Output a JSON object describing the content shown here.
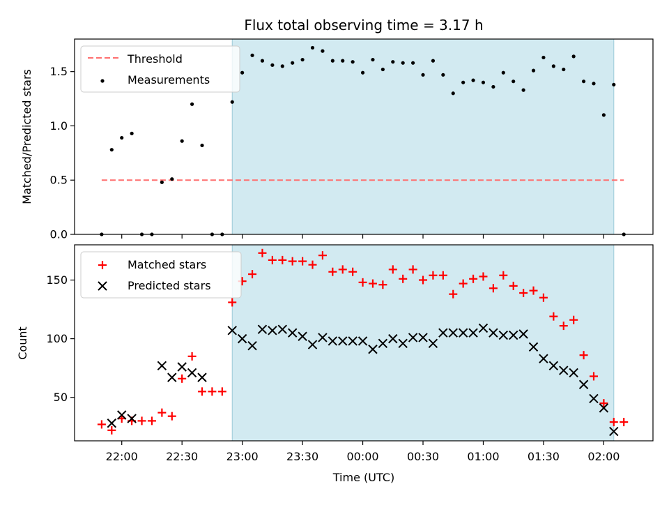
{
  "chart_data": [
    {
      "type": "scatter",
      "panel": "top",
      "title": "Flux total observing time = 3.17 h",
      "xlabel": "",
      "ylabel": "Matched/Predicted stars",
      "ylim": [
        0,
        1.8
      ],
      "yticks": [
        0.0,
        0.5,
        1.0,
        1.5
      ],
      "ytick_labels": [
        "0.0",
        "0.5",
        "1.0",
        "1.5"
      ],
      "x_unit": "minutes from 22:00 UTC",
      "xlim": [
        -23.5,
        264.5
      ],
      "xticks": [
        0,
        30,
        60,
        90,
        120,
        150,
        180,
        210,
        240
      ],
      "shaded_interval": [
        "22:55",
        "02:05"
      ],
      "shade_color": "#add8e6",
      "legend": {
        "position": "upper left",
        "entries": [
          "Threshold",
          "Measurements"
        ]
      },
      "threshold": {
        "name": "Threshold",
        "value": 0.5,
        "x_range": [
          "21:50",
          "02:10"
        ],
        "color": "#ff6f6f",
        "style": "dashed"
      },
      "series": [
        {
          "name": "Measurements",
          "marker": "dot",
          "color": "#000000",
          "x": [
            "21:50",
            "21:55",
            "22:00",
            "22:05",
            "22:10",
            "22:15",
            "22:20",
            "22:25",
            "22:30",
            "22:35",
            "22:40",
            "22:45",
            "22:50",
            "22:55",
            "23:00",
            "23:05",
            "23:10",
            "23:15",
            "23:20",
            "23:25",
            "23:30",
            "23:35",
            "23:40",
            "23:45",
            "23:50",
            "23:55",
            "00:00",
            "00:05",
            "00:10",
            "00:15",
            "00:20",
            "00:25",
            "00:30",
            "00:35",
            "00:40",
            "00:45",
            "00:50",
            "00:55",
            "01:00",
            "01:05",
            "01:10",
            "01:15",
            "01:20",
            "01:25",
            "01:30",
            "01:35",
            "01:40",
            "01:45",
            "01:50",
            "01:55",
            "02:00",
            "02:05",
            "02:10"
          ],
          "y": [
            0.0,
            0.78,
            0.89,
            0.93,
            0.0,
            0.0,
            0.48,
            0.51,
            0.86,
            1.2,
            0.82,
            0.0,
            0.0,
            1.22,
            1.49,
            1.65,
            1.6,
            1.56,
            1.55,
            1.58,
            1.61,
            1.72,
            1.69,
            1.6,
            1.6,
            1.59,
            1.49,
            1.61,
            1.52,
            1.59,
            1.58,
            1.58,
            1.47,
            1.6,
            1.47,
            1.3,
            1.4,
            1.42,
            1.4,
            1.36,
            1.49,
            1.41,
            1.33,
            1.51,
            1.63,
            1.55,
            1.52,
            1.64,
            1.41,
            1.39,
            1.1,
            1.38,
            0.0
          ]
        }
      ]
    },
    {
      "type": "scatter",
      "panel": "bottom",
      "title": "",
      "xlabel": "Time (UTC)",
      "ylabel": "Count",
      "ylim": [
        13,
        180
      ],
      "yticks": [
        50,
        100,
        150
      ],
      "ytick_labels": [
        "50",
        "100",
        "150"
      ],
      "x_unit": "minutes from 22:00 UTC",
      "xlim": [
        -23.5,
        264.5
      ],
      "xticks": [
        0,
        30,
        60,
        90,
        120,
        150,
        180,
        210,
        240
      ],
      "xtick_labels": [
        "22:00",
        "22:30",
        "23:00",
        "23:30",
        "00:00",
        "00:30",
        "01:00",
        "01:30",
        "02:00"
      ],
      "shaded_interval": [
        "22:55",
        "02:05"
      ],
      "shade_color": "#add8e6",
      "legend": {
        "position": "upper left",
        "entries": [
          "Matched stars",
          "Predicted stars"
        ]
      },
      "series": [
        {
          "name": "Matched stars",
          "marker": "plus",
          "color": "#ff0000",
          "x": [
            "21:50",
            "21:55",
            "22:00",
            "22:05",
            "22:10",
            "22:15",
            "22:20",
            "22:25",
            "22:30",
            "22:35",
            "22:40",
            "22:45",
            "22:50",
            "22:55",
            "23:00",
            "23:05",
            "23:10",
            "23:15",
            "23:20",
            "23:25",
            "23:30",
            "23:35",
            "23:40",
            "23:45",
            "23:50",
            "23:55",
            "00:00",
            "00:05",
            "00:10",
            "00:15",
            "00:20",
            "00:25",
            "00:30",
            "00:35",
            "00:40",
            "00:45",
            "00:50",
            "00:55",
            "01:00",
            "01:05",
            "01:10",
            "01:15",
            "01:20",
            "01:25",
            "01:30",
            "01:35",
            "01:40",
            "01:45",
            "01:50",
            "01:55",
            "02:00",
            "02:05",
            "02:10"
          ],
          "y": [
            27,
            22,
            32,
            30,
            30,
            30,
            37,
            34,
            66,
            85,
            55,
            55,
            55,
            131,
            149,
            155,
            173,
            167,
            167,
            166,
            166,
            163,
            171,
            157,
            159,
            157,
            148,
            147,
            146,
            159,
            151,
            159,
            150,
            154,
            154,
            138,
            147,
            151,
            153,
            143,
            154,
            145,
            139,
            141,
            135,
            119,
            111,
            116,
            86,
            68,
            45,
            29,
            29
          ]
        },
        {
          "name": "Predicted stars",
          "marker": "x",
          "color": "#000000",
          "x": [
            "21:55",
            "22:00",
            "22:05",
            "22:20",
            "22:25",
            "22:30",
            "22:35",
            "22:40",
            "22:55",
            "23:00",
            "23:05",
            "23:10",
            "23:15",
            "23:20",
            "23:25",
            "23:30",
            "23:35",
            "23:40",
            "23:45",
            "23:50",
            "23:55",
            "00:00",
            "00:05",
            "00:10",
            "00:15",
            "00:20",
            "00:25",
            "00:30",
            "00:35",
            "00:40",
            "00:45",
            "00:50",
            "00:55",
            "01:00",
            "01:05",
            "01:10",
            "01:15",
            "01:20",
            "01:25",
            "01:30",
            "01:35",
            "01:40",
            "01:45",
            "01:50",
            "01:55",
            "02:00",
            "02:05"
          ],
          "y": [
            28,
            35,
            32,
            77,
            67,
            76,
            71,
            67,
            107,
            100,
            94,
            108,
            107,
            108,
            105,
            102,
            95,
            101,
            98,
            98,
            98,
            98,
            91,
            96,
            100,
            96,
            101,
            101,
            96,
            105,
            105,
            105,
            105,
            109,
            105,
            103,
            103,
            104,
            93,
            83,
            77,
            73,
            71,
            61,
            49,
            41,
            21
          ]
        }
      ]
    }
  ]
}
